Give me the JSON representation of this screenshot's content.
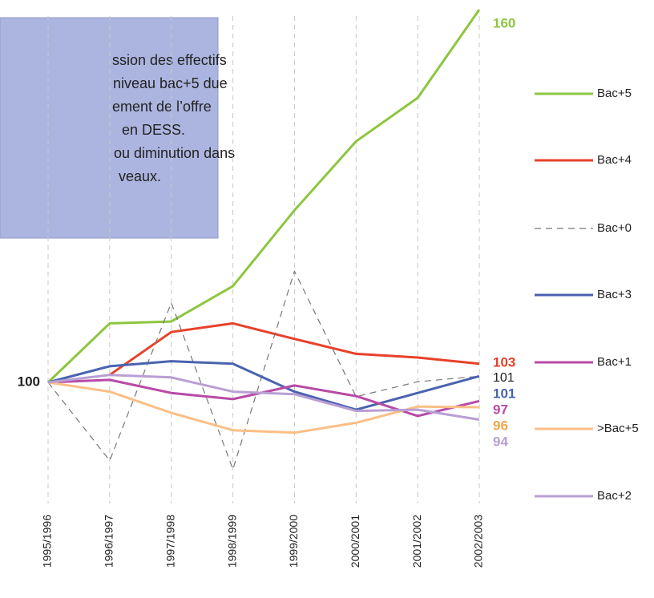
{
  "chart_data": {
    "type": "line",
    "box_text": [
      "ssion des effectifs",
      "niveau bac+5 due",
      "ement de l’offre",
      "en DESS.",
      "ou diminution dans",
      "veaux."
    ],
    "start_label": "100",
    "categories": [
      "1995/1996",
      "1996/1997",
      "1997/1998",
      "1998/1999",
      "1999/2000",
      "2000/2001",
      "2001/2002",
      "2002/2003"
    ],
    "ylim": [
      80,
      160
    ],
    "series": [
      {
        "name": "Bac+5",
        "color": "#8dc63f",
        "label_color": "#8dc63f",
        "dash": false,
        "values": [
          100,
          109.5,
          109.8,
          115.5,
          127.7,
          138.8,
          145.8,
          160
        ]
      },
      {
        "name": "Bac+4",
        "color": "#e8412a",
        "label_color": "#e8412a",
        "dash": false,
        "values": [
          null,
          101.2,
          108.1,
          109.5,
          107,
          104.6,
          104,
          103
        ]
      },
      {
        "name": "Bac+0",
        "color": "#777777",
        "label_color": "#222222",
        "dash": true,
        "values": [
          100,
          87.4,
          112.8,
          86,
          117.9,
          97.7,
          100.1,
          101
        ]
      },
      {
        "name": "Bac+3",
        "color": "#4a63b0",
        "label_color": "#4a63b0",
        "dash": false,
        "values": [
          100,
          102.6,
          103.4,
          103,
          98.5,
          95.6,
          98.3,
          101
        ]
      },
      {
        "name": "Bac+1",
        "color": "#b84aa6",
        "label_color": "#b84aa6",
        "dash": false,
        "values": [
          100,
          100.4,
          98.3,
          97.3,
          99.5,
          97.8,
          94.6,
          97
        ]
      },
      {
        "name": ">Bac+5",
        "color": "#fbbf86",
        "label_color": "#f5a54a",
        "dash": false,
        "values": [
          100,
          98.5,
          95.1,
          92.3,
          91.9,
          93.5,
          96.1,
          96
        ]
      },
      {
        "name": "Bac+2",
        "color": "#b99fd4",
        "label_color": "#b99fd4",
        "dash": false,
        "values": [
          100,
          101.2,
          100.8,
          98.5,
          98.1,
          95.4,
          95.6,
          94
        ]
      }
    ]
  }
}
